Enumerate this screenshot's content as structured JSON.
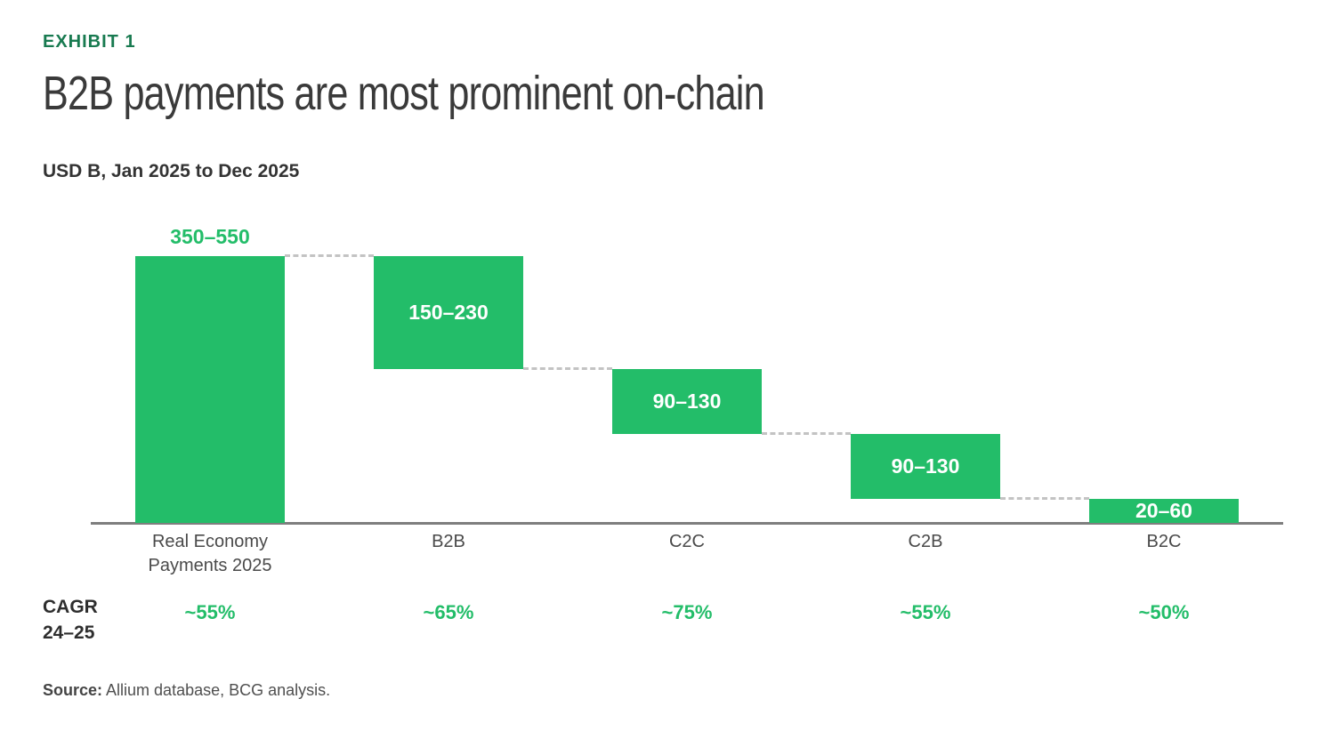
{
  "header": {
    "exhibit_label": "EXHIBIT 1",
    "title": "B2B payments are most prominent on-chain"
  },
  "chart": {
    "subtitle": "USD B, Jan 2025 to Dec 2025"
  },
  "chart_data": {
    "type": "waterfall",
    "title": "B2B payments are most prominent on-chain",
    "units_label": "USD B, Jan 2025 to Dec 2025",
    "categories": [
      "Real Economy Payments 2025",
      "B2B",
      "C2C",
      "C2B",
      "B2C"
    ],
    "bars": [
      {
        "category": "Real Economy Payments 2025",
        "label": "350–550",
        "range_low": 350,
        "range_high": 550,
        "start": 0,
        "end": 450,
        "label_placement": "above"
      },
      {
        "category": "B2B",
        "label": "150–230",
        "range_low": 150,
        "range_high": 230,
        "start": 260,
        "end": 450,
        "label_placement": "inside"
      },
      {
        "category": "C2C",
        "label": "90–130",
        "range_low": 90,
        "range_high": 130,
        "start": 150,
        "end": 260,
        "label_placement": "inside"
      },
      {
        "category": "C2B",
        "label": "90–130",
        "range_low": 90,
        "range_high": 130,
        "start": 40,
        "end": 150,
        "label_placement": "inside"
      },
      {
        "category": "B2C",
        "label": "20–60",
        "range_low": 20,
        "range_high": 60,
        "start": 0,
        "end": 40,
        "label_placement": "inside"
      }
    ],
    "cagr": {
      "row_label_line1": "CAGR",
      "row_label_line2": "24–25",
      "values": [
        "~55%",
        "~65%",
        "~75%",
        "~55%",
        "~50%"
      ]
    },
    "ylim": [
      0,
      450
    ],
    "grid": false,
    "legend": false,
    "connector_style": "dashed",
    "axis_line": true
  },
  "footer": {
    "source_label": "Source:",
    "source_text": " Allium database, BCG analysis."
  },
  "colors": {
    "bar_green": "#23bd69",
    "value_label_above_green": "#23bd69",
    "value_label_inside_white": "#ffffff",
    "cagr_green": "#23bd69",
    "exhibit_green": "#187a50",
    "title_gray": "#3a3a3a",
    "axis_gray": "#7e7e7e",
    "connector_gray": "#c3c3c3",
    "category_label_gray": "#4a4a4a"
  }
}
